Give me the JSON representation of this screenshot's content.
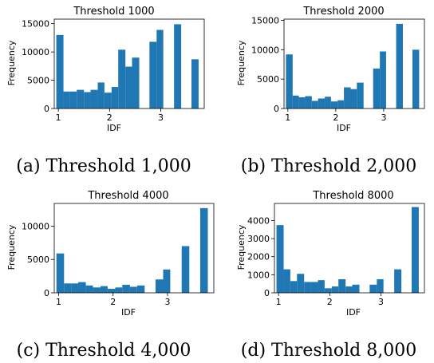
{
  "bar_color": "#1f77b4",
  "chart_data": [
    {
      "type": "bar",
      "title": "Threshold 1000",
      "xlabel": "IDF",
      "ylabel": "Frequency",
      "caption": "(a) Threshold 1,000",
      "xlim": [
        0.92,
        3.85
      ],
      "ylim": [
        0,
        15800
      ],
      "xticks": [
        1,
        2,
        3
      ],
      "yticks": [
        0,
        5000,
        10000,
        15000
      ],
      "bins": [
        {
          "x0": 0.96,
          "x1": 1.1,
          "y": 13000
        },
        {
          "x0": 1.1,
          "x1": 1.23,
          "y": 3000
        },
        {
          "x0": 1.23,
          "x1": 1.36,
          "y": 3000
        },
        {
          "x0": 1.36,
          "x1": 1.5,
          "y": 3300
        },
        {
          "x0": 1.5,
          "x1": 1.63,
          "y": 2900
        },
        {
          "x0": 1.63,
          "x1": 1.77,
          "y": 3300
        },
        {
          "x0": 1.77,
          "x1": 1.9,
          "y": 4600
        },
        {
          "x0": 1.9,
          "x1": 2.04,
          "y": 2800
        },
        {
          "x0": 2.04,
          "x1": 2.17,
          "y": 3800
        },
        {
          "x0": 2.17,
          "x1": 2.31,
          "y": 10400
        },
        {
          "x0": 2.31,
          "x1": 2.44,
          "y": 7400
        },
        {
          "x0": 2.44,
          "x1": 2.58,
          "y": 9000
        },
        {
          "x0": 2.78,
          "x1": 2.92,
          "y": 11800
        },
        {
          "x0": 2.92,
          "x1": 3.05,
          "y": 13900
        },
        {
          "x0": 3.26,
          "x1": 3.4,
          "y": 14900
        },
        {
          "x0": 3.6,
          "x1": 3.74,
          "y": 8700
        }
      ]
    },
    {
      "type": "bar",
      "title": "Threshold 2000",
      "xlabel": "IDF",
      "ylabel": "Frequency",
      "caption": "(b) Threshold 2,000",
      "xlim": [
        0.92,
        3.85
      ],
      "ylim": [
        0,
        15200
      ],
      "xticks": [
        1,
        2,
        3
      ],
      "yticks": [
        0,
        5000,
        10000,
        15000
      ],
      "bins": [
        {
          "x0": 0.96,
          "x1": 1.1,
          "y": 9200
        },
        {
          "x0": 1.1,
          "x1": 1.23,
          "y": 2200
        },
        {
          "x0": 1.23,
          "x1": 1.36,
          "y": 1900
        },
        {
          "x0": 1.36,
          "x1": 1.5,
          "y": 2100
        },
        {
          "x0": 1.5,
          "x1": 1.63,
          "y": 1300
        },
        {
          "x0": 1.63,
          "x1": 1.77,
          "y": 1700
        },
        {
          "x0": 1.77,
          "x1": 1.9,
          "y": 2000
        },
        {
          "x0": 1.9,
          "x1": 2.04,
          "y": 1200
        },
        {
          "x0": 2.04,
          "x1": 2.17,
          "y": 1400
        },
        {
          "x0": 2.17,
          "x1": 2.31,
          "y": 3600
        },
        {
          "x0": 2.31,
          "x1": 2.44,
          "y": 3300
        },
        {
          "x0": 2.44,
          "x1": 2.58,
          "y": 4400
        },
        {
          "x0": 2.78,
          "x1": 2.92,
          "y": 6800
        },
        {
          "x0": 2.92,
          "x1": 3.05,
          "y": 9700
        },
        {
          "x0": 3.26,
          "x1": 3.4,
          "y": 14400
        },
        {
          "x0": 3.6,
          "x1": 3.74,
          "y": 10000
        }
      ]
    },
    {
      "type": "bar",
      "title": "Threshold 4000",
      "xlabel": "IDF",
      "ylabel": "Frequency",
      "caption": "(c) Threshold 4,000",
      "xlim": [
        0.92,
        3.85
      ],
      "ylim": [
        0,
        13400
      ],
      "xticks": [
        1,
        2,
        3
      ],
      "yticks": [
        0,
        5000,
        10000
      ],
      "bins": [
        {
          "x0": 0.96,
          "x1": 1.1,
          "y": 5900
        },
        {
          "x0": 1.1,
          "x1": 1.23,
          "y": 1400
        },
        {
          "x0": 1.23,
          "x1": 1.36,
          "y": 1400
        },
        {
          "x0": 1.36,
          "x1": 1.5,
          "y": 1600
        },
        {
          "x0": 1.5,
          "x1": 1.63,
          "y": 1100
        },
        {
          "x0": 1.63,
          "x1": 1.77,
          "y": 800
        },
        {
          "x0": 1.77,
          "x1": 1.9,
          "y": 1000
        },
        {
          "x0": 1.9,
          "x1": 2.04,
          "y": 600
        },
        {
          "x0": 2.04,
          "x1": 2.17,
          "y": 800
        },
        {
          "x0": 2.17,
          "x1": 2.31,
          "y": 1200
        },
        {
          "x0": 2.31,
          "x1": 2.44,
          "y": 900
        },
        {
          "x0": 2.44,
          "x1": 2.58,
          "y": 1100
        },
        {
          "x0": 2.78,
          "x1": 2.92,
          "y": 2000
        },
        {
          "x0": 2.92,
          "x1": 3.05,
          "y": 3500
        },
        {
          "x0": 3.26,
          "x1": 3.4,
          "y": 7000
        },
        {
          "x0": 3.6,
          "x1": 3.74,
          "y": 12700
        }
      ]
    },
    {
      "type": "bar",
      "title": "Threshold 8000",
      "xlabel": "IDF",
      "ylabel": "Frequency",
      "caption": "(d) Threshold 8,000",
      "xlim": [
        0.92,
        3.85
      ],
      "ylim": [
        0,
        4950
      ],
      "xticks": [
        1,
        2,
        3
      ],
      "yticks": [
        0,
        1000,
        2000,
        3000,
        4000
      ],
      "bins": [
        {
          "x0": 0.96,
          "x1": 1.1,
          "y": 3750
        },
        {
          "x0": 1.1,
          "x1": 1.23,
          "y": 1300
        },
        {
          "x0": 1.23,
          "x1": 1.36,
          "y": 650
        },
        {
          "x0": 1.36,
          "x1": 1.5,
          "y": 1050
        },
        {
          "x0": 1.5,
          "x1": 1.63,
          "y": 600
        },
        {
          "x0": 1.63,
          "x1": 1.77,
          "y": 600
        },
        {
          "x0": 1.77,
          "x1": 1.9,
          "y": 700
        },
        {
          "x0": 1.9,
          "x1": 2.04,
          "y": 250
        },
        {
          "x0": 2.04,
          "x1": 2.17,
          "y": 350
        },
        {
          "x0": 2.17,
          "x1": 2.31,
          "y": 750
        },
        {
          "x0": 2.31,
          "x1": 2.44,
          "y": 350
        },
        {
          "x0": 2.44,
          "x1": 2.58,
          "y": 450
        },
        {
          "x0": 2.78,
          "x1": 2.92,
          "y": 450
        },
        {
          "x0": 2.92,
          "x1": 3.05,
          "y": 750
        },
        {
          "x0": 3.26,
          "x1": 3.4,
          "y": 1300
        },
        {
          "x0": 3.6,
          "x1": 3.74,
          "y": 4750
        }
      ]
    }
  ]
}
